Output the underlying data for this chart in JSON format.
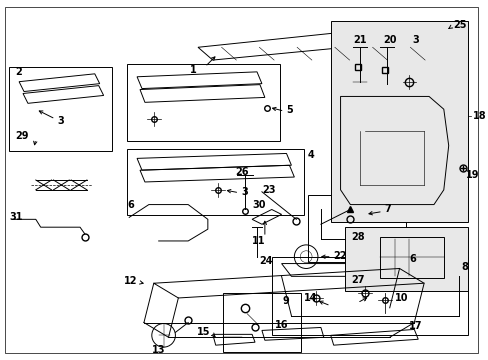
{
  "bg_color": "#ffffff",
  "fig_width": 4.89,
  "fig_height": 3.6,
  "dpi": 100,
  "line_color": "#000000",
  "label_fontsize": 7,
  "lw": 0.7,
  "box_fill": "#e8e8e8"
}
